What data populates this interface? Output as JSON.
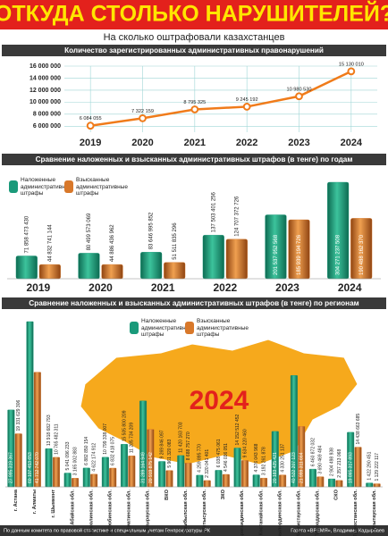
{
  "header": {
    "title": "ОТКУДА СТОЛЬКО НАРУШИТЕЛЕЙ?",
    "subtitle": "На сколько оштрафовали казахстанцев"
  },
  "chart_data": [
    {
      "type": "line",
      "title": "Количество зарегистрированных административных правонарушений",
      "categories": [
        "2019",
        "2020",
        "2021",
        "2022",
        "2023",
        "2024"
      ],
      "values": [
        6084055,
        7322159,
        8795325,
        9245192,
        10980530,
        15130010
      ],
      "value_labels": [
        "6 084 055",
        "7 322 159",
        "8 795 325",
        "9 245 192",
        "10 980 530",
        "15 130 010"
      ],
      "color": "#f07b1a",
      "ylim": [
        5000000,
        16000000
      ],
      "yticks": [
        {
          "value": 6000000,
          "label": "6 000 000"
        },
        {
          "value": 8000000,
          "label": "8 000 000"
        },
        {
          "value": 10000000,
          "label": "10 000 000"
        },
        {
          "value": 12000000,
          "label": "12 000 000"
        },
        {
          "value": 14000000,
          "label": "14 000 000"
        },
        {
          "value": 16000000,
          "label": "16 000 000"
        }
      ],
      "grid": true
    },
    {
      "type": "bar",
      "title": "Сравнение наложенных и взысканных административных штрафов (в тенге) по годам",
      "categories": [
        "2019",
        "2020",
        "2021",
        "2022",
        "2023",
        "2024"
      ],
      "series": [
        {
          "name": "Наложенные административные штрафы",
          "color": "#1a9a7a",
          "values": [
            71858473430,
            80499573069,
            83646995852,
            137503401256,
            201537952568,
            304271237508
          ],
          "value_labels": [
            "71 858 473 430",
            "80 499 573 069",
            "83 646 995 852",
            "137 503 401 256",
            "201 537 952 568",
            "304 271 237 508"
          ]
        },
        {
          "name": "Взысканные административные штрафы",
          "color": "#d8782a",
          "values": [
            44832741144,
            44886436962,
            51511835296,
            124707372726,
            185939194726,
            190488162370
          ],
          "value_labels": [
            "44 832 741 144",
            "44 886 436 962",
            "51 511 835 296",
            "124 707 372 726",
            "185 939 194 726",
            "190 488 162 370"
          ]
        }
      ],
      "legend": "top-left"
    },
    {
      "type": "bar",
      "title": "Сравнение наложенных и взысканных административных штрафов (в тенге) по регионам",
      "annotation": "2024",
      "categories": [
        "г. Астана",
        "г. Алматы",
        "г. Шымкент",
        "Абайская обл.",
        "Акмолинская обл.",
        "Актюбинская обл.",
        "Алматинская обл.",
        "Атырауская обл.",
        "ВКО",
        "Жамбылская обл.",
        "Жетысуская обл.",
        "ЗКО",
        "Карагандинская обл.",
        "Костанайская обл.",
        "Кызылординская обл.",
        "Мангистауская обл.",
        "Павлодарская обл.",
        "СКО",
        "Туркестанская обл.",
        "Улытауская обл."
      ],
      "series": [
        {
          "name": "Наложенные административные штрафы",
          "color": "#1a9a7a",
          "values": [
            27995319367,
            60107453653,
            13918682793,
            5041096233,
            6882850154,
            10799338007,
            15505800209,
            31289164949,
            9269846097,
            11420163703,
            4259895770,
            6038475061,
            14152512452,
            4376043968,
            20183425421,
            40532207123,
            6460872032,
            2904498938,
            19865317893,
            1422290451
          ],
          "value_labels": [
            "27 995 319 367",
            "60 107 453 653",
            "13 918 682 793",
            "5 041 096 233",
            "6 882 850 154",
            "10 799 338 007",
            "15 505 800 209",
            "31 289 164 949",
            "9 269 846 097",
            "11 420 163 703",
            "4 259 895 770",
            "6 038 475 061",
            "14 152 512 452",
            "4 376 043 968",
            "20 183 425 421",
            "40 532 207 123",
            "6 460 872 032",
            "2 904 498 938",
            "19 865 317 893",
            "1 422 290 451"
          ]
        },
        {
          "name": "Взысканные административные штрафы",
          "color": "#d8782a",
          "values": [
            19331629306,
            41712742070,
            10765482311,
            3165002883,
            4622174912,
            6832418075,
            11285734209,
            20919875142,
            5961320083,
            8688757270,
            2320041401,
            4546036051,
            9634220460,
            3192261878,
            4330251137,
            21999311664,
            3690469484,
            2357213068,
            14438663685,
            1129222117
          ],
          "value_labels": [
            "19 331 629 306",
            "41 712 742 070",
            "10 765 482 311",
            "3 165 002 883",
            "4 622 174 912",
            "6 832 418 075",
            "11 285 734 209",
            "20 919 875 142",
            "5 961 320 083",
            "8 688 757 270",
            "2 320 041 401",
            "4 546 036 051",
            "9 634 220 460",
            "3 192 261 878",
            "4 330 251 137",
            "21 999 311 664",
            "3 690 469 484",
            "2 357 213 068",
            "14 438 663 685",
            "1 129 222 117"
          ]
        }
      ],
      "legend": "top-center"
    }
  ],
  "footer": {
    "source": "По данным комитета по правовой статистике и специальным учетам Генпрокуратуры РК",
    "credit": "Газета «ВРЕМЯ», Владимир Кадырбаев"
  }
}
